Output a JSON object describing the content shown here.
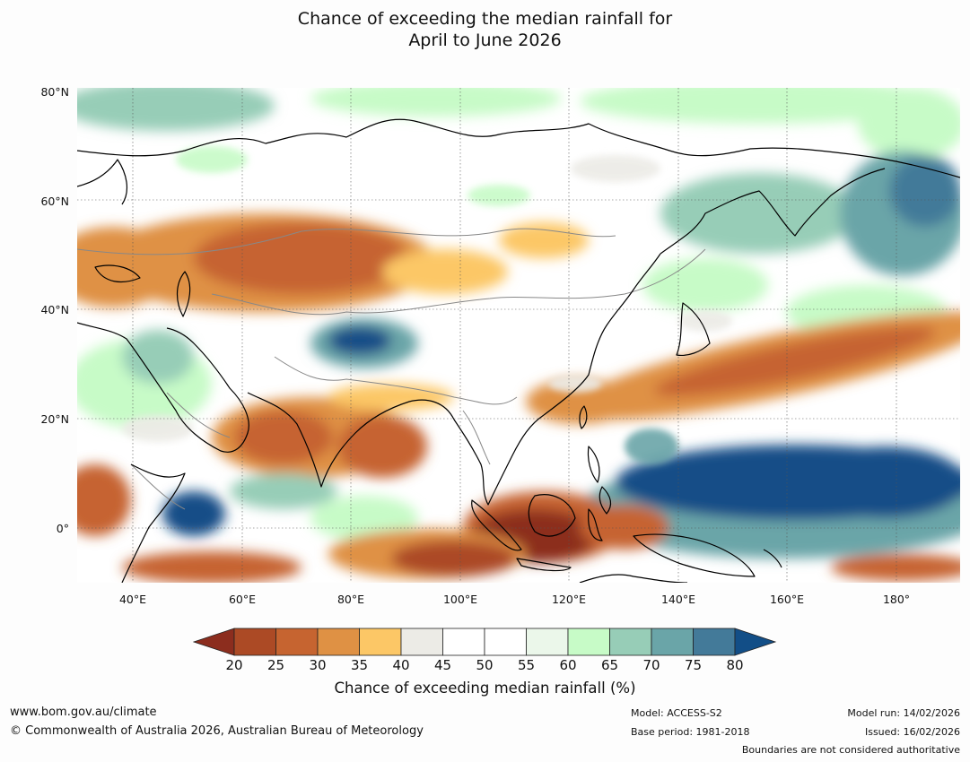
{
  "title_line1": "Chance of exceeding the median rainfall for",
  "title_line2": "April to June 2026",
  "lat_labels": [
    "80°N",
    "60°N",
    "40°N",
    "20°N",
    "0°"
  ],
  "lon_labels": [
    "40°E",
    "60°E",
    "80°E",
    "100°E",
    "120°E",
    "140°E",
    "160°E",
    "180°"
  ],
  "colorbar": {
    "label": "Chance of exceeding median rainfall (%)",
    "ticks": [
      "20",
      "25",
      "30",
      "35",
      "40",
      "45",
      "50",
      "55",
      "60",
      "65",
      "70",
      "75",
      "80"
    ],
    "colors": {
      "below20": "#8c2d1e",
      "b20_25": "#ac4a25",
      "b25_30": "#c66430",
      "b30_35": "#df9144",
      "b35_40": "#fcc766",
      "b40_45": "#ecebe6",
      "b45_50": "#ffffff",
      "b50_55": "#ffffff",
      "b55_60": "#ebf7ea",
      "b60_65": "#c7fbc7",
      "b65_70": "#97cdb7",
      "b70_75": "#6aa5a8",
      "b75_80": "#437a99",
      "above80": "#124e87"
    }
  },
  "footer": {
    "website": "www.bom.gov.au/climate",
    "copyright": "© Commonwealth of Australia 2026, Australian Bureau of Meteorology",
    "model": "Model: ACCESS-S2",
    "base_period": "Base period: 1981-2018",
    "model_run": "Model run: 14/02/2026",
    "issued": "Issued: 16/02/2026",
    "disclaimer": "Boundaries are not considered authoritative"
  }
}
